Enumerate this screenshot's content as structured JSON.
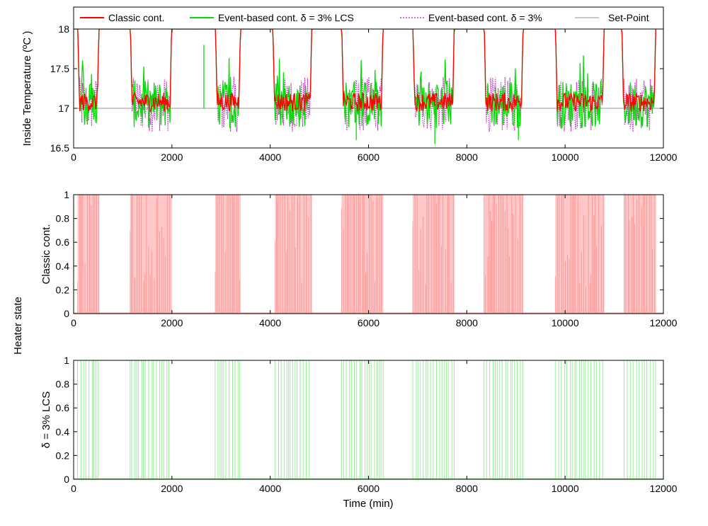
{
  "figure": {
    "shared_label": "Heater state"
  },
  "colors": {
    "classic": "#ff0000",
    "lcs": "#00dd00",
    "event": "#cc33cc",
    "setpoint": "#909090",
    "classic_fill": "#ff9999",
    "lcs_fill": "#99ee99"
  },
  "chart_data": [
    {
      "type": "line",
      "ylabel": "Inside Temperature (ºC )",
      "xlim": [
        0,
        12000
      ],
      "ylim": [
        16.5,
        18
      ],
      "xticks": [
        "0",
        "2000",
        "4000",
        "6000",
        "8000",
        "10000",
        "12000"
      ],
      "yticks": [
        "16.5",
        "17",
        "17.5",
        "18"
      ],
      "setpoint": 17,
      "legend_position": "top",
      "heating_windows": [
        [
          80,
          520
        ],
        [
          1150,
          2000
        ],
        [
          2880,
          3400
        ],
        [
          4050,
          4850
        ],
        [
          5450,
          6300
        ],
        [
          6900,
          7750
        ],
        [
          8350,
          9150
        ],
        [
          9800,
          10800
        ],
        [
          11150,
          11850
        ]
      ],
      "spikes": [
        [
          2650,
          17.8
        ],
        [
          7350,
          16.55
        ],
        [
          9050,
          16.6
        ],
        [
          5750,
          16.6
        ]
      ],
      "series": [
        {
          "name": "Classic cont.",
          "color": "#ff0000",
          "style": "solid",
          "amplitude": 0.12
        },
        {
          "name": "Event-based cont. δ = 3% LCS",
          "color": "#00dd00",
          "style": "solid",
          "amplitude": 0.3
        },
        {
          "name": "Event-based cont. δ = 3%",
          "color": "#cc33cc",
          "style": "dotted",
          "amplitude": 0.35
        },
        {
          "name": "Set-Point",
          "color": "#909090",
          "style": "solid",
          "value": 17
        }
      ]
    },
    {
      "type": "area",
      "ylabel": "Classic cont.",
      "xlim": [
        0,
        12000
      ],
      "ylim": [
        0,
        1
      ],
      "xticks": [
        "0",
        "2000",
        "4000",
        "6000",
        "8000",
        "10000",
        "12000"
      ],
      "yticks": [
        "0",
        "0.2",
        "0.4",
        "0.6",
        "0.8",
        "1"
      ],
      "on_windows": [
        [
          80,
          520
        ],
        [
          1150,
          2000
        ],
        [
          2880,
          3400
        ],
        [
          4100,
          4850
        ],
        [
          5450,
          6300
        ],
        [
          6900,
          7750
        ],
        [
          8350,
          9150
        ],
        [
          9800,
          10800
        ],
        [
          11200,
          11850
        ]
      ],
      "color": "#ff9999",
      "dense": true
    },
    {
      "type": "area",
      "ylabel": "δ = 3% LCS",
      "xlabel": "Time (min)",
      "xlim": [
        0,
        12000
      ],
      "ylim": [
        0,
        1
      ],
      "xticks": [
        "0",
        "2000",
        "4000",
        "6000",
        "8000",
        "10000",
        "12000"
      ],
      "yticks": [
        "0",
        "0.2",
        "0.4",
        "0.6",
        "0.8",
        "1"
      ],
      "on_windows": [
        [
          80,
          520
        ],
        [
          1150,
          2000
        ],
        [
          2880,
          3400
        ],
        [
          4100,
          4850
        ],
        [
          5450,
          6300
        ],
        [
          6900,
          7750
        ],
        [
          8350,
          9150
        ],
        [
          9800,
          10800
        ],
        [
          11200,
          11850
        ]
      ],
      "color": "#99ee99",
      "dense": false
    }
  ]
}
